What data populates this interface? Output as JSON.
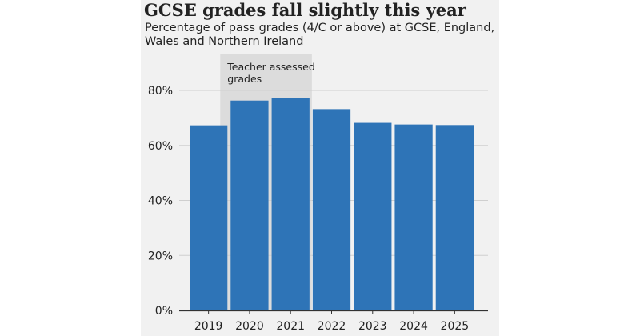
{
  "colors": {
    "bar": "#2e74b7",
    "band": "#dcdcdc",
    "panel": "#f1f1f1",
    "grid": "#cfcfcf",
    "text": "#222222"
  },
  "chart_data": {
    "type": "bar",
    "title": "GCSE grades fall slightly this year",
    "subtitle": "Percentage of pass grades (4/C or above) at GCSE, England, Wales and Northern Ireland",
    "xlabel": "",
    "ylabel": "",
    "categories": [
      "2019",
      "2020",
      "2021",
      "2022",
      "2023",
      "2024",
      "2025"
    ],
    "values": [
      67.3,
      76.3,
      77.1,
      73.2,
      68.2,
      67.6,
      67.4
    ],
    "ylim": [
      0,
      80
    ],
    "yticks": [
      0,
      20,
      40,
      60,
      80
    ],
    "ytick_labels": [
      "0%",
      "20%",
      "40%",
      "60%",
      "80%"
    ],
    "grid": true,
    "annotations": [
      {
        "text_lines": [
          "Teacher assessed",
          "grades"
        ],
        "span": [
          "2020",
          "2021"
        ]
      }
    ]
  }
}
